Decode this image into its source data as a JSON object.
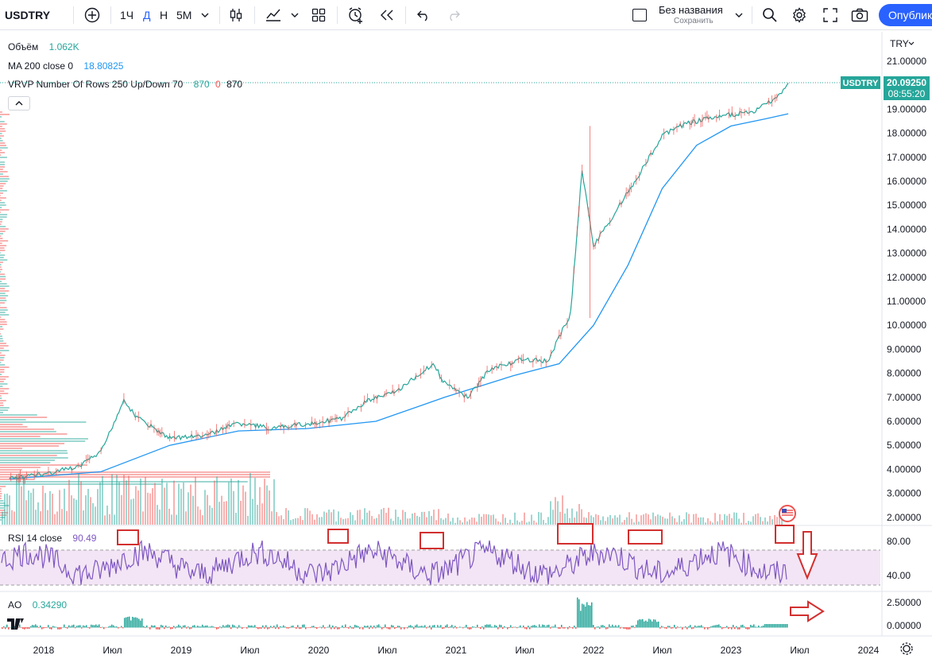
{
  "toolbar": {
    "symbol": "USDTRY",
    "intervals": [
      "1Ч",
      "Д",
      "Н",
      "5М"
    ],
    "active_interval": "Д",
    "layout_name": "Без названия",
    "layout_sub": "Сохранить",
    "publish": "Опублик"
  },
  "legend": {
    "volume_label": "Объём",
    "volume_value": "1.062K",
    "ma_label": "MA 200 close 0",
    "ma_value": "18.80825",
    "vrvp_label": "VRVP Number Of Rows 250 Up/Down 70",
    "vrvp_v1": "870",
    "vrvp_v2": "0",
    "vrvp_v3": "870",
    "rsi_label": "RSI 14 close",
    "rsi_value": "90.49",
    "ao_label": "AO",
    "ao_value": "0.34290"
  },
  "price_axis": {
    "currency": "TRY",
    "last_symbol": "USDTRY",
    "last_price": "20.09250",
    "countdown": "08:55:20",
    "ticks": [
      "21.00000",
      "20.00000",
      "19.00000",
      "18.00000",
      "17.00000",
      "16.00000",
      "15.00000",
      "14.00000",
      "13.00000",
      "12.00000",
      "11.00000",
      "10.00000",
      "9.00000",
      "8.00000",
      "7.00000",
      "6.00000",
      "5.00000",
      "4.00000",
      "3.00000",
      "2.00000"
    ],
    "rsi_ticks": [
      "80.00",
      "40.00"
    ],
    "ao_ticks": [
      "2.50000",
      "0.00000"
    ]
  },
  "time_axis": [
    "2018",
    "Июл",
    "2019",
    "Июл",
    "2020",
    "Июл",
    "2021",
    "Июл",
    "2022",
    "Июл",
    "2023",
    "Июл",
    "2024"
  ],
  "colors": {
    "up": "#26a69a",
    "down": "#ef5350",
    "ma": "#2196f3",
    "rsi": "#7e57c2",
    "rsi_band": "#f3e5f5",
    "annot": "#d32f2f"
  },
  "chart_data": {
    "type": "line",
    "title": "USDTRY",
    "series": [
      {
        "name": "USDTRY",
        "x": [
          "2017-10",
          "2018-01",
          "2018-04",
          "2018-06",
          "2018-08",
          "2018-09",
          "2018-12",
          "2019-03",
          "2019-06",
          "2019-09",
          "2019-12",
          "2020-03",
          "2020-05",
          "2020-08",
          "2020-11",
          "2020-12",
          "2021-02",
          "2021-04",
          "2021-07",
          "2021-09",
          "2021-11",
          "2021-12",
          "2022-01",
          "2022-03",
          "2022-05",
          "2022-07",
          "2022-09",
          "2022-12",
          "2023-03",
          "2023-05",
          "2023-06"
        ],
        "y": [
          3.6,
          3.8,
          4.1,
          4.7,
          6.9,
          6.2,
          5.3,
          5.4,
          5.9,
          5.7,
          5.9,
          6.1,
          6.8,
          7.3,
          8.4,
          7.6,
          7.0,
          8.2,
          8.6,
          8.5,
          10.5,
          16.5,
          13.3,
          14.8,
          16.3,
          17.9,
          18.4,
          18.7,
          18.9,
          19.5,
          20.09
        ]
      },
      {
        "name": "MA 200 close 0",
        "x": [
          "2017-10",
          "2018-06",
          "2018-12",
          "2019-06",
          "2019-12",
          "2020-06",
          "2020-12",
          "2021-06",
          "2021-10",
          "2022-01",
          "2022-04",
          "2022-07",
          "2022-10",
          "2023-01",
          "2023-04",
          "2023-06"
        ],
        "y": [
          3.6,
          3.9,
          5.0,
          5.6,
          5.7,
          6.0,
          7.0,
          7.9,
          8.4,
          10.0,
          12.5,
          15.7,
          17.5,
          18.3,
          18.6,
          18.81
        ]
      }
    ],
    "rsi_series": {
      "name": "RSI 14 close",
      "last": 90.49,
      "upper": 70,
      "lower": 30
    },
    "ao_series": {
      "name": "AO",
      "last": 0.3429
    },
    "ylim": [
      1.8,
      21.3
    ],
    "legend_position": "top-left"
  }
}
